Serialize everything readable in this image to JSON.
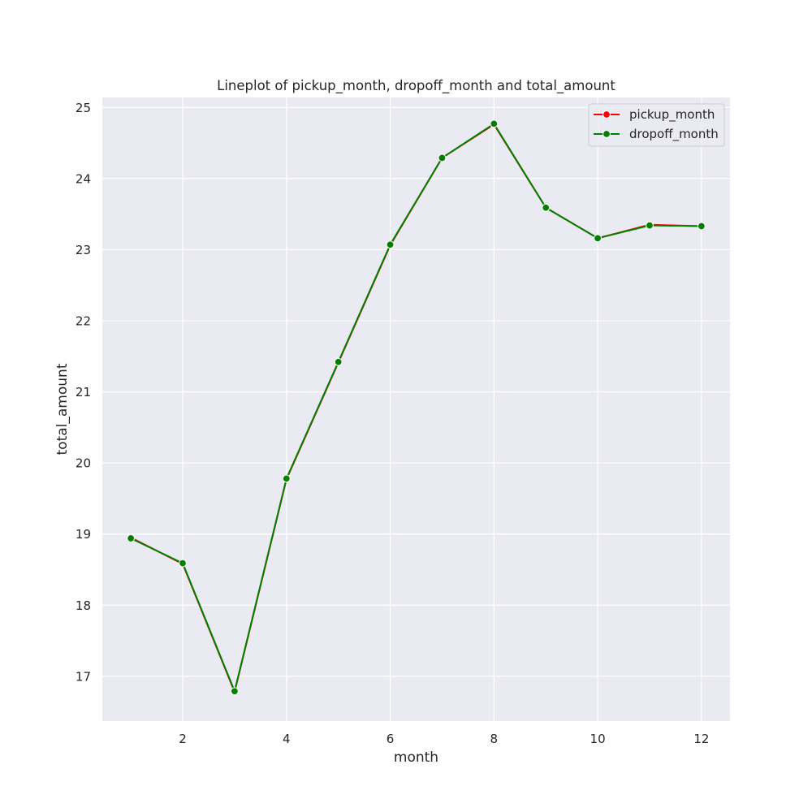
{
  "chart_data": {
    "type": "line",
    "title": "Lineplot of pickup_month, dropoff_month and total_amount",
    "xlabel": "month",
    "ylabel": "total_amount",
    "x": [
      1,
      2,
      3,
      4,
      5,
      6,
      7,
      8,
      9,
      10,
      11,
      12
    ],
    "xlim": [
      0.45,
      12.55
    ],
    "ylim": [
      16.37,
      25.14
    ],
    "xticks": [
      2,
      4,
      6,
      8,
      10,
      12
    ],
    "yticks": [
      17,
      18,
      19,
      20,
      21,
      22,
      23,
      24,
      25
    ],
    "grid": true,
    "legend_position": "top-right",
    "series": [
      {
        "name": "pickup_month",
        "color": "#ff0000",
        "marker": "circle",
        "values": [
          18.95,
          18.58,
          16.78,
          19.77,
          21.41,
          23.06,
          24.29,
          24.76,
          23.59,
          23.16,
          23.35,
          23.33
        ]
      },
      {
        "name": "dropoff_month",
        "color": "#008000",
        "marker": "circle",
        "values": [
          18.94,
          18.59,
          16.79,
          19.78,
          21.42,
          23.07,
          24.29,
          24.77,
          23.59,
          23.16,
          23.34,
          23.33
        ]
      }
    ],
    "colors": {
      "plot_background": "#eaeaf2",
      "grid": "#ffffff"
    }
  }
}
